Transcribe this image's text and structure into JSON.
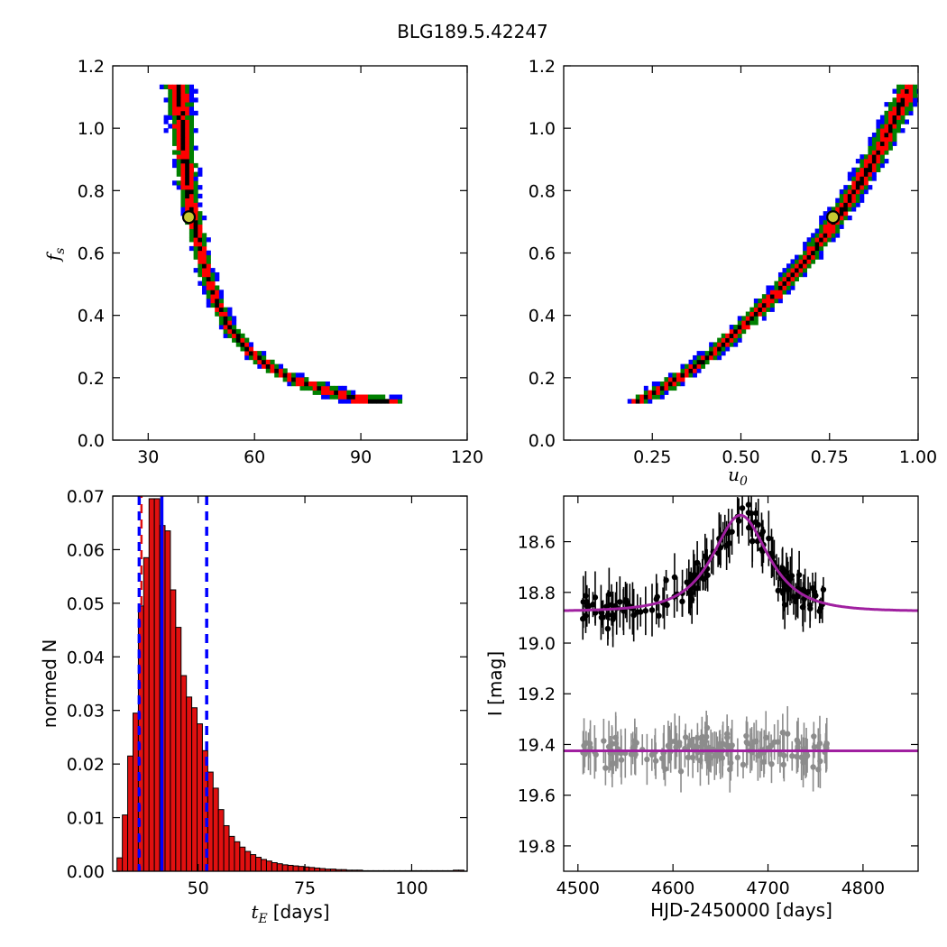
{
  "figure": {
    "title": "BLG189.5.42247"
  },
  "colors": {
    "sigma1": "#000000",
    "sigma2": "#ff0000",
    "sigma3": "#008000",
    "sigma4": "#0000ff",
    "marker": "#c8c832",
    "model": "#a020a0",
    "data_main": "#000000",
    "data_resid": "#8c8c8c"
  },
  "chart_data": [
    {
      "id": "tE-fs",
      "type": "heatmap",
      "xlabel": "",
      "ylabel_sym": "f",
      "ylabel_sub": "s",
      "xlim": [
        20,
        120
      ],
      "ylim": [
        0,
        1.2
      ],
      "xticks": [
        30,
        60,
        90,
        120
      ],
      "yticks": [
        "0.0",
        "0.2",
        "0.4",
        "0.6",
        "0.8",
        "1.0",
        "1.2"
      ],
      "best_fit": {
        "x": 41.5,
        "y": 0.715
      },
      "ridge": [
        [
          38.5,
          1.14
        ],
        [
          39.5,
          1.0
        ],
        [
          41,
          0.85
        ],
        [
          42,
          0.75
        ],
        [
          44,
          0.65
        ],
        [
          46,
          0.55
        ],
        [
          49,
          0.45
        ],
        [
          53,
          0.36
        ],
        [
          58,
          0.29
        ],
        [
          65,
          0.23
        ],
        [
          72,
          0.19
        ],
        [
          80,
          0.16
        ],
        [
          90,
          0.13
        ],
        [
          100,
          0.12
        ]
      ],
      "bands": {
        "sigma1": 0.8,
        "sigma2": 2.6,
        "sigma3": 4.3,
        "sigma4": 6.3
      }
    },
    {
      "id": "u0-fs",
      "type": "heatmap",
      "xlabel_sym": "u",
      "xlabel_sub": "0",
      "ylabel": "",
      "xlim": [
        0,
        1.0
      ],
      "ylim": [
        0,
        1.2
      ],
      "xticks": [
        "0.25",
        "0.50",
        "0.75",
        "1.00"
      ],
      "yticks": [
        "0.0",
        "0.2",
        "0.4",
        "0.6",
        "0.8",
        "1.0",
        "1.2"
      ],
      "best_fit": {
        "x": 0.76,
        "y": 0.715
      },
      "ridge": [
        [
          0.2,
          0.12
        ],
        [
          0.3,
          0.18
        ],
        [
          0.4,
          0.26
        ],
        [
          0.5,
          0.36
        ],
        [
          0.6,
          0.47
        ],
        [
          0.7,
          0.6
        ],
        [
          0.8,
          0.76
        ],
        [
          0.9,
          0.95
        ],
        [
          0.97,
          1.12
        ]
      ]
    },
    {
      "id": "tE-hist",
      "type": "bar",
      "xlabel_sym": "t",
      "xlabel_sub": "E",
      "xlabel": "[days]",
      "ylabel": "normed N",
      "xlim": [
        30,
        113
      ],
      "ylim": [
        0,
        0.07
      ],
      "xticks": [
        "50",
        "75",
        "100"
      ],
      "yticks": [
        "0.00",
        "0.01",
        "0.02",
        "0.03",
        "0.04",
        "0.05",
        "0.06",
        "0.07"
      ],
      "bin_start": 31,
      "bin_width": 1.25,
      "values": [
        0.0025,
        0.0105,
        0.0215,
        0.0295,
        0.0495,
        0.0585,
        0.0695,
        0.0695,
        0.0645,
        0.0635,
        0.0525,
        0.0455,
        0.0365,
        0.0325,
        0.0305,
        0.0275,
        0.0225,
        0.0185,
        0.0155,
        0.0115,
        0.0085,
        0.0065,
        0.0055,
        0.0045,
        0.0037,
        0.0031,
        0.0026,
        0.0022,
        0.0019,
        0.0016,
        0.0014,
        0.0012,
        0.0011,
        0.001,
        0.0009,
        0.0008,
        0.0007,
        0.0006,
        0.0005,
        0.0004,
        0.0004,
        0.0003,
        0.0003,
        0.0002,
        0.0002,
        0.0002,
        0.0001,
        0.0001,
        0.0001,
        0.0001,
        0.0001,
        0.0001,
        0.0001,
        0.0001,
        0.0001,
        0.0001,
        0.0001,
        0.0001,
        0.0001,
        0.0001,
        0.0001,
        0.0001,
        0.0001,
        0.0002,
        0.0002
      ],
      "median": 41.5,
      "lower": 36.2,
      "upper": 52.0
    },
    {
      "id": "lightcurve",
      "type": "scatter",
      "xlabel": "HJD-2450000 [days]",
      "ylabel": "I [mag]",
      "xlim": [
        4485,
        4858
      ],
      "ylim": [
        19.9,
        18.42
      ],
      "xticks": [
        "4500",
        "4600",
        "4700",
        "4800"
      ],
      "yticks": [
        "18.6",
        "18.8",
        "19.0",
        "19.2",
        "19.4",
        "19.6",
        "19.8"
      ],
      "model": {
        "t0": 4671,
        "tE": 41.5,
        "u0": 0.76,
        "fs": 0.715,
        "Ibase": 18.875
      },
      "resid_level": 19.425,
      "season": [
        4505,
        4765
      ]
    }
  ]
}
